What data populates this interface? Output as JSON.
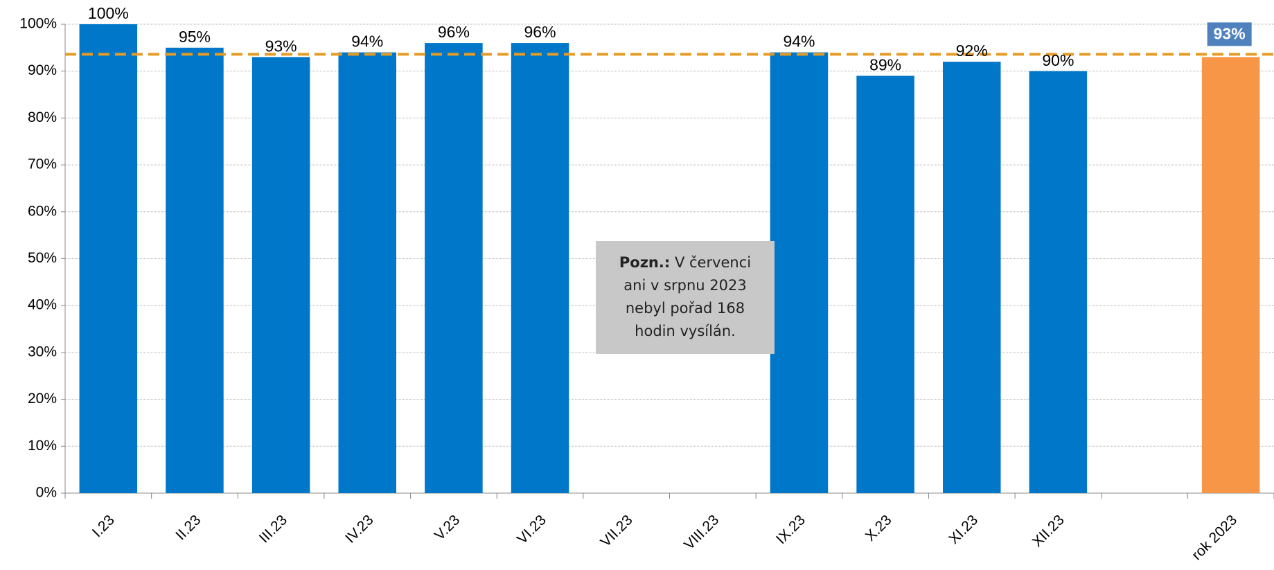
{
  "chart_data": {
    "type": "bar",
    "categories": [
      "I.23",
      "II.23",
      "III.23",
      "IV.23",
      "V.23",
      "VI.23",
      "VII.23",
      "VIII.23",
      "IX.23",
      "X.23",
      "XI.23",
      "XII.23",
      null,
      "rok 2023"
    ],
    "values": [
      100,
      95,
      93,
      94,
      96,
      96,
      null,
      null,
      94,
      89,
      92,
      90,
      null,
      93
    ],
    "value_labels": [
      "100%",
      "95%",
      "93%",
      "94%",
      "96%",
      "96%",
      null,
      null,
      "94%",
      "89%",
      "92%",
      "90%",
      null,
      "93%"
    ],
    "color": "#0077c8",
    "colors": [
      "#0077c8",
      "#0077c8",
      "#0077c8",
      "#0077c8",
      "#0077c8",
      "#0077c8",
      null,
      null,
      "#0077c8",
      "#0077c8",
      "#0077c8",
      "#0077c8",
      null,
      "#f79646"
    ],
    "label_box_color": "#4f81bd",
    "reference_line": {
      "value": 93.6,
      "color": "#e69c24",
      "style": "dashed"
    },
    "ylim": [
      0,
      100
    ],
    "yticks": [
      {
        "value": 0,
        "label": "0%"
      },
      {
        "value": 10,
        "label": "10%"
      },
      {
        "value": 20,
        "label": "20%"
      },
      {
        "value": 30,
        "label": "30%"
      },
      {
        "value": 40,
        "label": "40%"
      },
      {
        "value": 50,
        "label": "50%"
      },
      {
        "value": 60,
        "label": "60%"
      },
      {
        "value": 70,
        "label": "70%"
      },
      {
        "value": 80,
        "label": "80%"
      },
      {
        "value": 90,
        "label": "90%"
      },
      {
        "value": 100,
        "label": "100%"
      }
    ],
    "grid": true,
    "annotation": {
      "bold": "Pozn.:",
      "lines": [
        "V červenci",
        "ani v srpnu 2023",
        "nebyl pořad 168",
        "hodin vysílán."
      ]
    }
  }
}
